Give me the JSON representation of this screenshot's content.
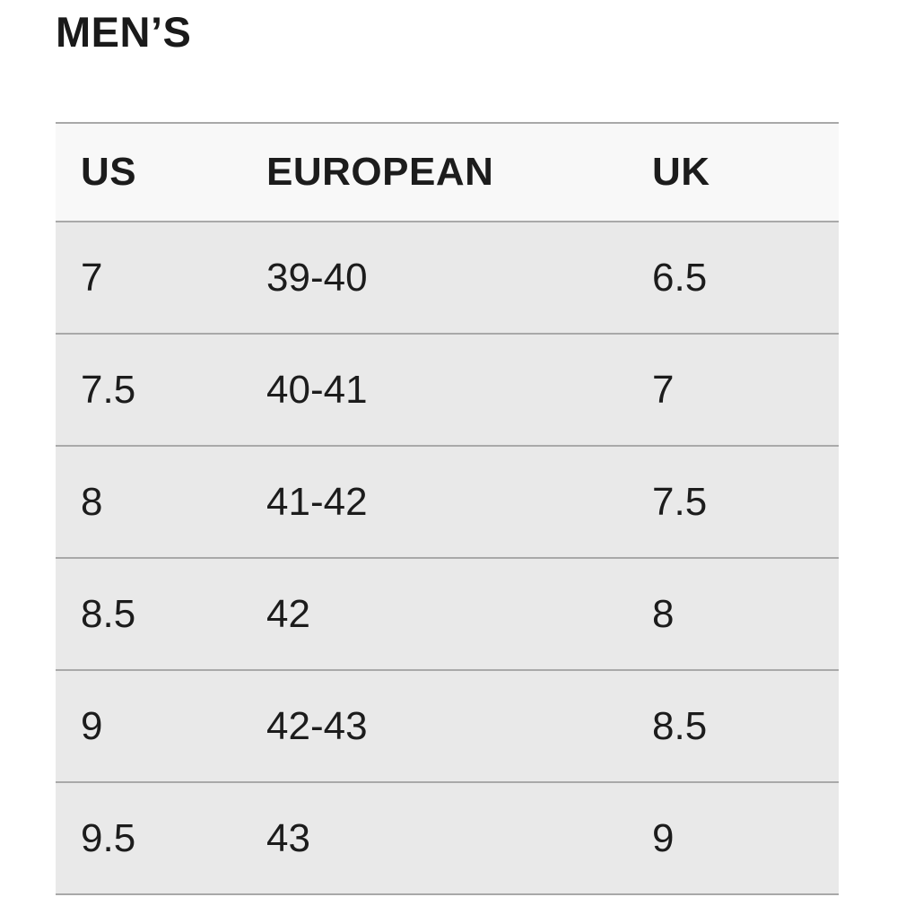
{
  "title": "MEN’S",
  "chart_data": {
    "type": "table",
    "title": "MEN’S",
    "columns": [
      "US",
      "EUROPEAN",
      "UK"
    ],
    "rows": [
      [
        "7",
        "39-40",
        "6.5"
      ],
      [
        "7.5",
        "40-41",
        "7"
      ],
      [
        "8",
        "41-42",
        "7.5"
      ],
      [
        "8.5",
        "42",
        "8"
      ],
      [
        "9",
        "42-43",
        "8.5"
      ],
      [
        "9.5",
        "43",
        "9"
      ]
    ]
  },
  "colors": {
    "page_background": "#ffffff",
    "header_row_background": "#f8f8f8",
    "body_row_background": "#e9e9e9",
    "row_border": "#a9a9a9",
    "text": "#1c1c1c"
  }
}
